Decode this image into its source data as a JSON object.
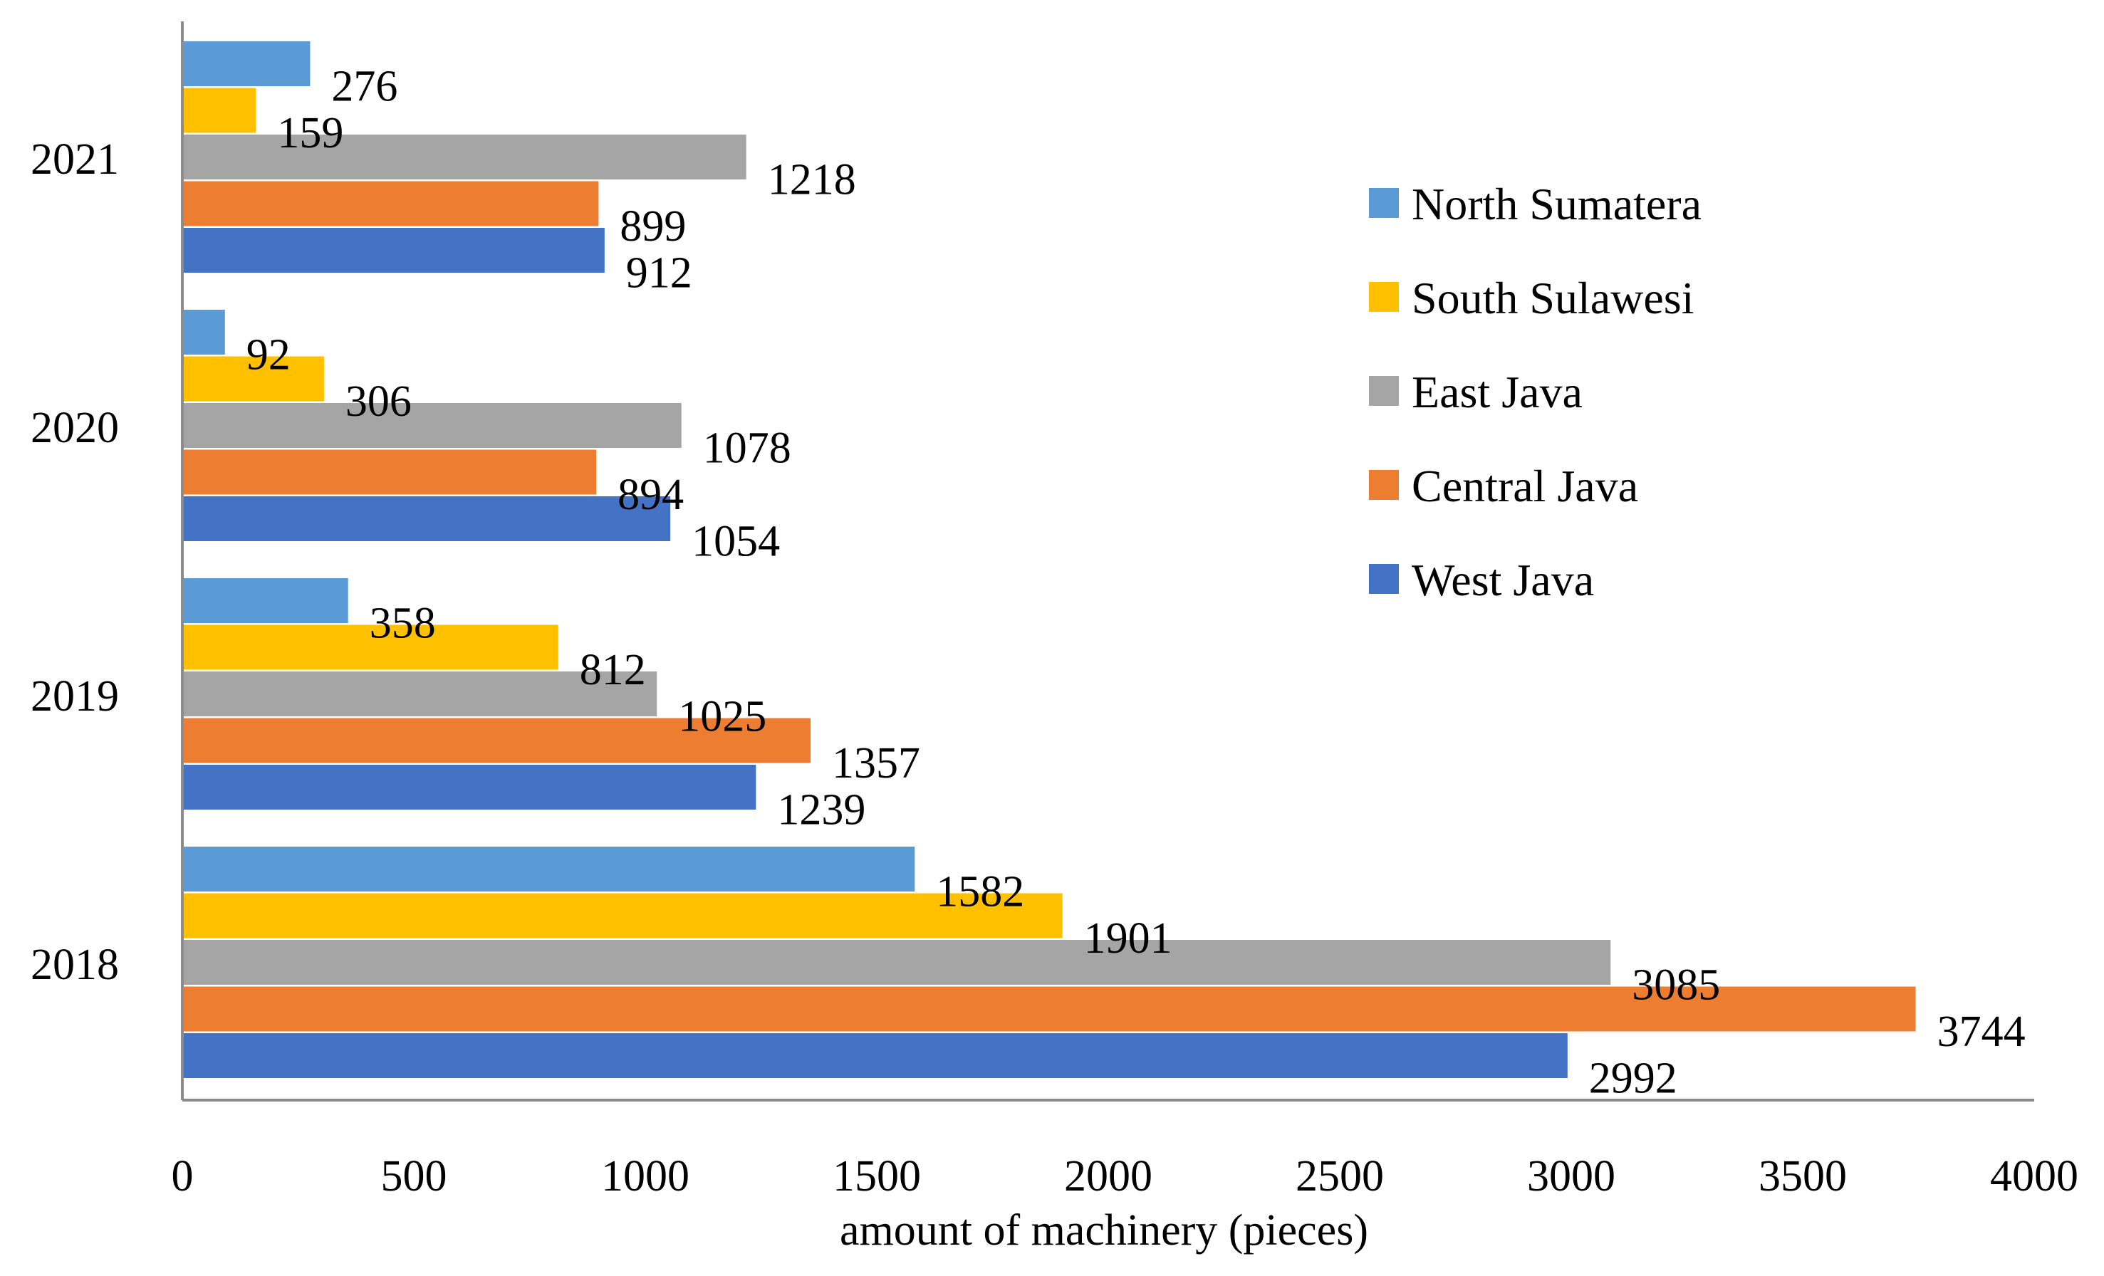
{
  "chart_data": {
    "type": "bar",
    "orientation": "horizontal",
    "title": "",
    "xlabel": "amount of machinery (pieces)",
    "ylabel": "",
    "xlim": [
      0,
      4000
    ],
    "xticks": [
      0,
      500,
      1000,
      1500,
      2000,
      2500,
      3000,
      3500,
      4000
    ],
    "grid": false,
    "legend_position": "right",
    "categories": [
      "2021",
      "2020",
      "2019",
      "2018"
    ],
    "series": [
      {
        "name": "North Sumatera",
        "color": "#5B9BD5",
        "values": [
          276,
          92,
          358,
          1582
        ]
      },
      {
        "name": "South Sulawesi",
        "color": "#FFC000",
        "values": [
          159,
          306,
          812,
          1901
        ]
      },
      {
        "name": "East Java",
        "color": "#A5A5A5",
        "values": [
          1218,
          1078,
          1025,
          3085
        ]
      },
      {
        "name": "Central Java",
        "color": "#ED7D31",
        "values": [
          899,
          894,
          1357,
          3744
        ]
      },
      {
        "name": "West Java",
        "color": "#4472C4",
        "values": [
          912,
          1054,
          1239,
          2992
        ]
      }
    ]
  }
}
